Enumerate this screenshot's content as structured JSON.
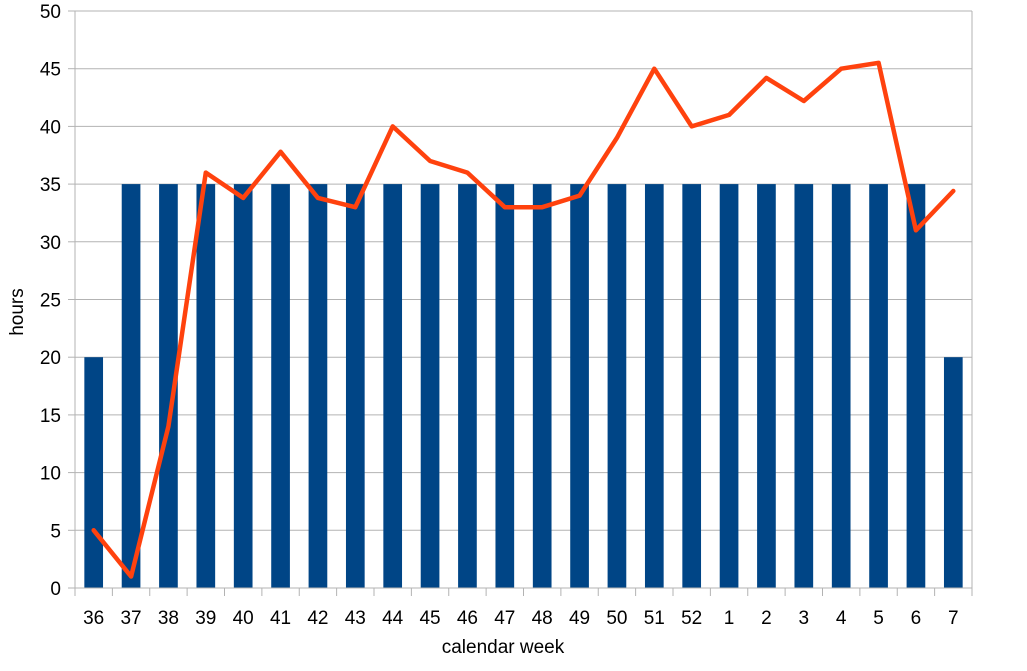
{
  "chart_data": {
    "type": "bar",
    "xlabel": "calendar week",
    "ylabel": "hours",
    "ylim": [
      0,
      50
    ],
    "yticks": [
      "0",
      "5",
      "10",
      "15",
      "20",
      "25",
      "30",
      "35",
      "40",
      "45",
      "50"
    ],
    "grid": true,
    "legend": "none",
    "categories": [
      "36",
      "37",
      "38",
      "39",
      "40",
      "41",
      "42",
      "43",
      "44",
      "45",
      "46",
      "47",
      "48",
      "49",
      "50",
      "51",
      "52",
      "1",
      "2",
      "3",
      "4",
      "5",
      "6",
      "7"
    ],
    "series": [
      {
        "type": "bar",
        "color": "#004586",
        "values": [
          20,
          35,
          35,
          35,
          35,
          35,
          35,
          35,
          35,
          35,
          35,
          35,
          35,
          35,
          35,
          35,
          35,
          35,
          35,
          35,
          35,
          35,
          35,
          20
        ]
      },
      {
        "type": "line",
        "color": "#ff420e",
        "values": [
          5,
          1,
          14,
          36,
          33.8,
          37.8,
          33.8,
          33,
          40,
          37,
          36,
          33,
          33,
          34,
          39,
          45,
          40,
          41,
          44.2,
          42.2,
          45,
          45.5,
          31,
          34.4
        ]
      }
    ]
  }
}
